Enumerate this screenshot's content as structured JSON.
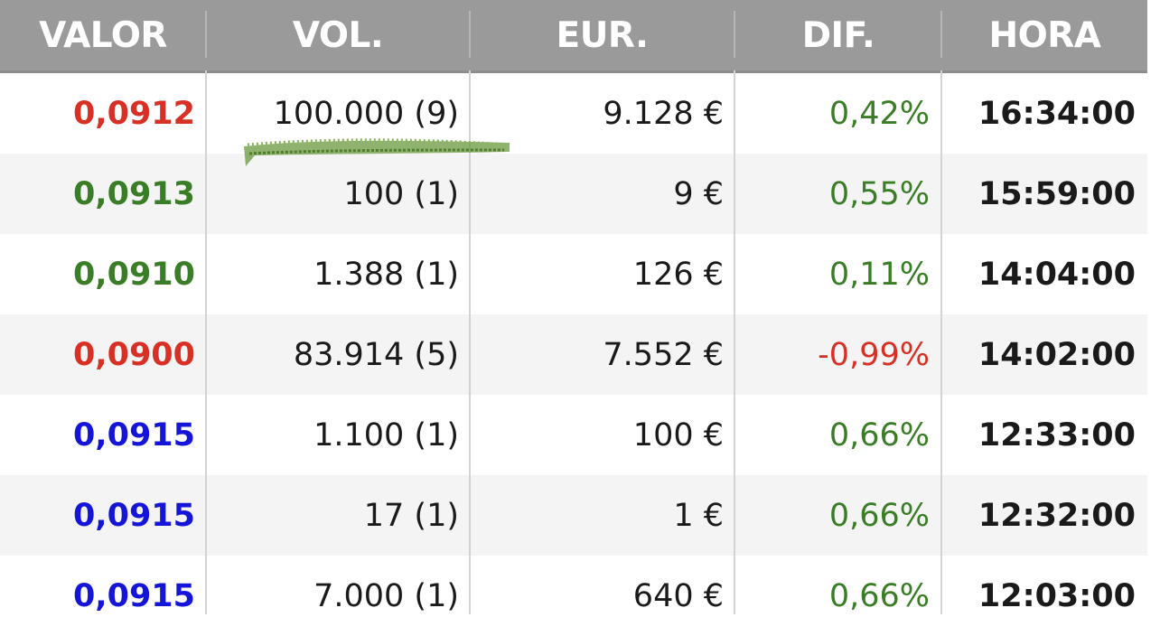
{
  "columns": [
    "VALOR",
    "VOL.",
    "EUR.",
    "DIF.",
    "HORA"
  ],
  "colors": {
    "up": "#3a7d27",
    "down": "#d93025",
    "neutral": "#1515d8",
    "scribble": "#6a9a3e"
  },
  "rows": [
    {
      "valor": "0,0912",
      "valor_color": "#d93025",
      "vol": "100.000 (9)",
      "eur": "9.128 €",
      "dif": "0,42%",
      "dif_color": "#3a7d27",
      "hora": "16:34:00"
    },
    {
      "valor": "0,0913",
      "valor_color": "#3a7d27",
      "vol": "100 (1)",
      "eur": "9 €",
      "dif": "0,55%",
      "dif_color": "#3a7d27",
      "hora": "15:59:00"
    },
    {
      "valor": "0,0910",
      "valor_color": "#3a7d27",
      "vol": "1.388 (1)",
      "eur": "126 €",
      "dif": "0,11%",
      "dif_color": "#3a7d27",
      "hora": "14:04:00"
    },
    {
      "valor": "0,0900",
      "valor_color": "#d93025",
      "vol": "83.914 (5)",
      "eur": "7.552 €",
      "dif": "-0,99%",
      "dif_color": "#d93025",
      "hora": "14:02:00"
    },
    {
      "valor": "0,0915",
      "valor_color": "#1515d8",
      "vol": "1.100 (1)",
      "eur": "100 €",
      "dif": "0,66%",
      "dif_color": "#3a7d27",
      "hora": "12:33:00"
    },
    {
      "valor": "0,0915",
      "valor_color": "#1515d8",
      "vol": "17 (1)",
      "eur": "1 €",
      "dif": "0,66%",
      "dif_color": "#3a7d27",
      "hora": "12:32:00"
    },
    {
      "valor": "0,0915",
      "valor_color": "#1515d8",
      "vol": "7.000 (1)",
      "eur": "640 €",
      "dif": "0,66%",
      "dif_color": "#3a7d27",
      "hora": "12:03:00"
    }
  ]
}
